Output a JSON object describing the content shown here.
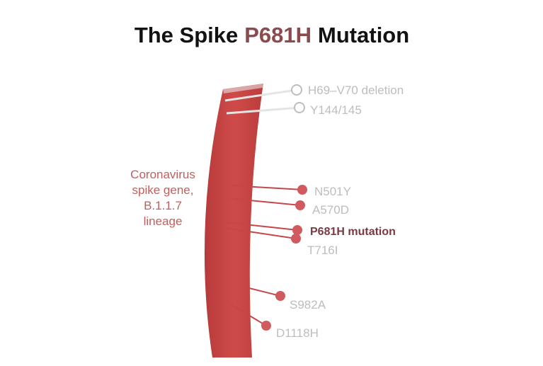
{
  "title": {
    "before": "The Spike",
    "highlight": "P681H",
    "after": "Mutation"
  },
  "gene_label": [
    "Coronavirus",
    "spike gene,",
    "B.1.1.7",
    "lineage"
  ],
  "mutations": [
    {
      "name": "H69–V70 deletion",
      "style": "hollow"
    },
    {
      "name": "Y144/145",
      "style": "hollow"
    },
    {
      "name": "N501Y",
      "style": "filled"
    },
    {
      "name": "A570D",
      "style": "filled"
    },
    {
      "name": "P681H mutation",
      "style": "highlight"
    },
    {
      "name": "T716I",
      "style": "filled"
    },
    {
      "name": "S982A",
      "style": "filled"
    },
    {
      "name": "D1118H",
      "style": "filled"
    }
  ]
}
